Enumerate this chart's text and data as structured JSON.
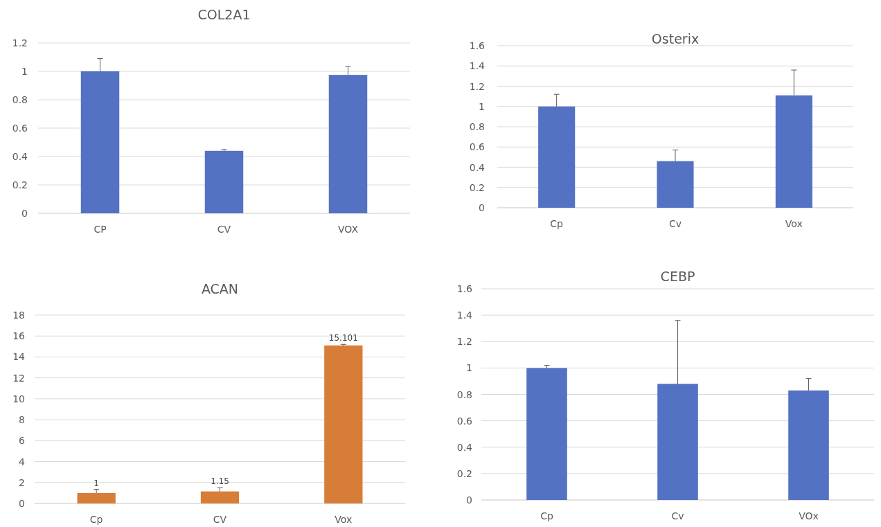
{
  "chart_data": [
    {
      "type": "bar",
      "title": "COL2A1",
      "categories": [
        "CP",
        "CV",
        "VOX"
      ],
      "values": [
        1,
        0.44,
        0.975
      ],
      "color": "#5472c4",
      "errors": [
        [
          1,
          1.09
        ],
        [
          0.44,
          0.45
        ],
        [
          0.975,
          1.035
        ]
      ],
      "ylim": [
        0,
        1.2
      ],
      "yticks": [
        0,
        0.2,
        0.4,
        0.6,
        0.8,
        1,
        1.2
      ],
      "grid": "y"
    },
    {
      "type": "bar",
      "title": "Osterix",
      "categories": [
        "Cp",
        "Cv",
        "Vox"
      ],
      "values": [
        1,
        0.46,
        1.11
      ],
      "color": "#5472c4",
      "errors": [
        [
          1,
          1.12
        ],
        [
          0.46,
          0.57
        ],
        [
          1.11,
          1.36
        ]
      ],
      "ylim": [
        0,
        1.6
      ],
      "yticks": [
        0,
        0.2,
        0.4,
        0.6,
        0.8,
        1,
        1.2,
        1.4,
        1.6
      ],
      "grid": "y"
    },
    {
      "type": "bar",
      "title": "ACAN",
      "categories": [
        "Cp",
        "CV",
        "Vox"
      ],
      "values": [
        1,
        1.15,
        15.101
      ],
      "color": "#d87d38",
      "errors": [
        [
          1,
          1.35
        ],
        [
          1.15,
          1.5
        ],
        [
          15.101,
          15.2
        ]
      ],
      "ylim": [
        0,
        18
      ],
      "yticks": [
        0,
        2,
        4,
        6,
        8,
        10,
        12,
        14,
        16,
        18
      ],
      "grid": "y",
      "data_labels": true
    },
    {
      "type": "bar",
      "title": "CEBP",
      "categories": [
        "Cp",
        "Cv",
        "VOx"
      ],
      "values": [
        1,
        0.88,
        0.83
      ],
      "color": "#5472c4",
      "errors": [
        [
          1,
          1.02
        ],
        [
          0.88,
          1.36
        ],
        [
          0.83,
          0.92
        ]
      ],
      "ylim": [
        0,
        1.6
      ],
      "yticks": [
        0,
        0.2,
        0.4,
        0.6,
        0.8,
        1,
        1.2,
        1.4,
        1.6
      ],
      "grid": "y"
    }
  ]
}
